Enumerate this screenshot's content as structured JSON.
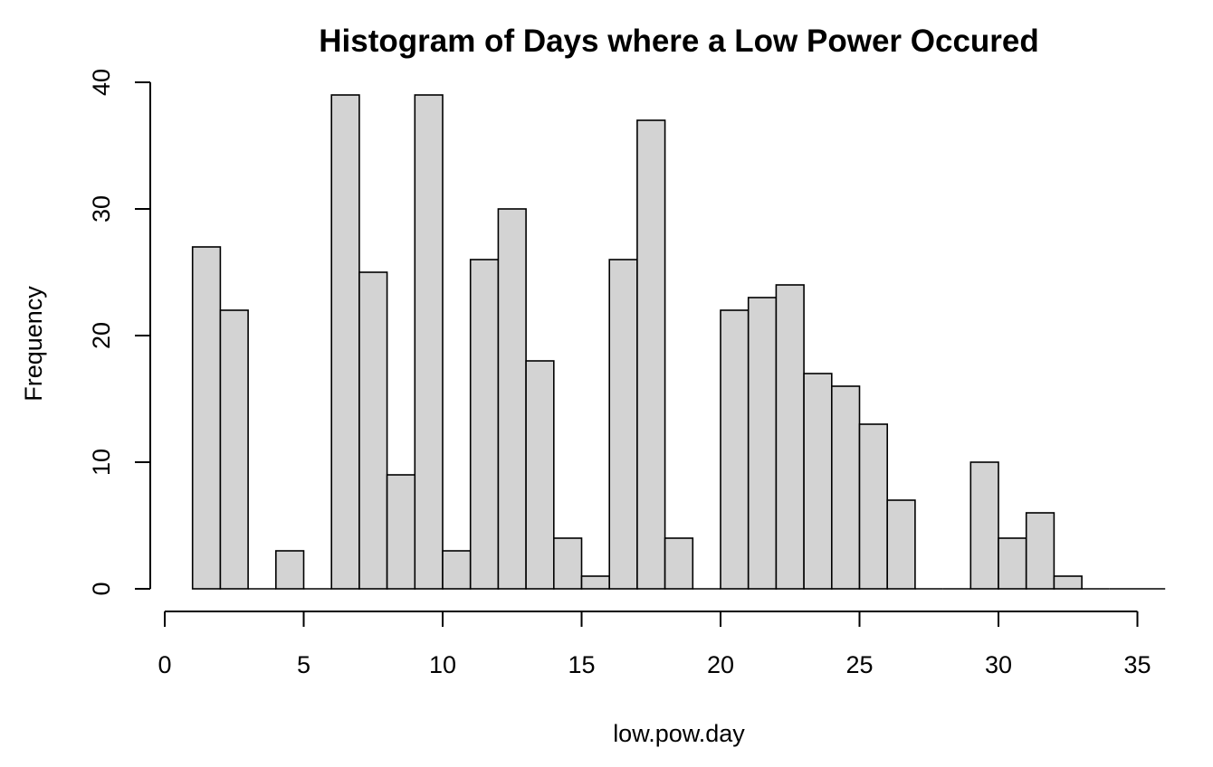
{
  "chart_data": {
    "type": "bar",
    "title": "Histogram of Days where a Low Power Occured",
    "xlabel": "low.pow.day",
    "ylabel": "Frequency",
    "xlim": [
      0,
      36
    ],
    "ylim": [
      0,
      40
    ],
    "x_ticks": [
      0,
      5,
      10,
      15,
      20,
      25,
      30,
      35
    ],
    "y_ticks": [
      0,
      10,
      20,
      30,
      40
    ],
    "bins": [
      [
        1,
        2,
        27
      ],
      [
        2,
        3,
        22
      ],
      [
        3,
        4,
        0
      ],
      [
        4,
        5,
        3
      ],
      [
        5,
        6,
        0
      ],
      [
        6,
        7,
        39
      ],
      [
        7,
        8,
        25
      ],
      [
        8,
        9,
        9
      ],
      [
        9,
        10,
        39
      ],
      [
        10,
        11,
        3
      ],
      [
        11,
        12,
        26
      ],
      [
        12,
        13,
        30
      ],
      [
        13,
        14,
        18
      ],
      [
        14,
        15,
        4
      ],
      [
        15,
        16,
        1
      ],
      [
        16,
        17,
        26
      ],
      [
        17,
        18,
        37
      ],
      [
        18,
        19,
        4
      ],
      [
        19,
        20,
        0
      ],
      [
        20,
        21,
        22
      ],
      [
        21,
        22,
        23
      ],
      [
        22,
        23,
        24
      ],
      [
        23,
        24,
        17
      ],
      [
        24,
        25,
        16
      ],
      [
        25,
        26,
        13
      ],
      [
        26,
        27,
        7
      ],
      [
        27,
        28,
        0
      ],
      [
        28,
        29,
        0
      ],
      [
        29,
        30,
        10
      ],
      [
        30,
        31,
        4
      ],
      [
        31,
        32,
        6
      ],
      [
        32,
        33,
        1
      ],
      [
        33,
        34,
        0
      ],
      [
        34,
        35,
        0
      ],
      [
        35,
        36,
        0
      ]
    ],
    "colors": {
      "bar_fill": "#d3d3d3",
      "bar_stroke": "#000000"
    },
    "grid": false,
    "legend": "none"
  }
}
